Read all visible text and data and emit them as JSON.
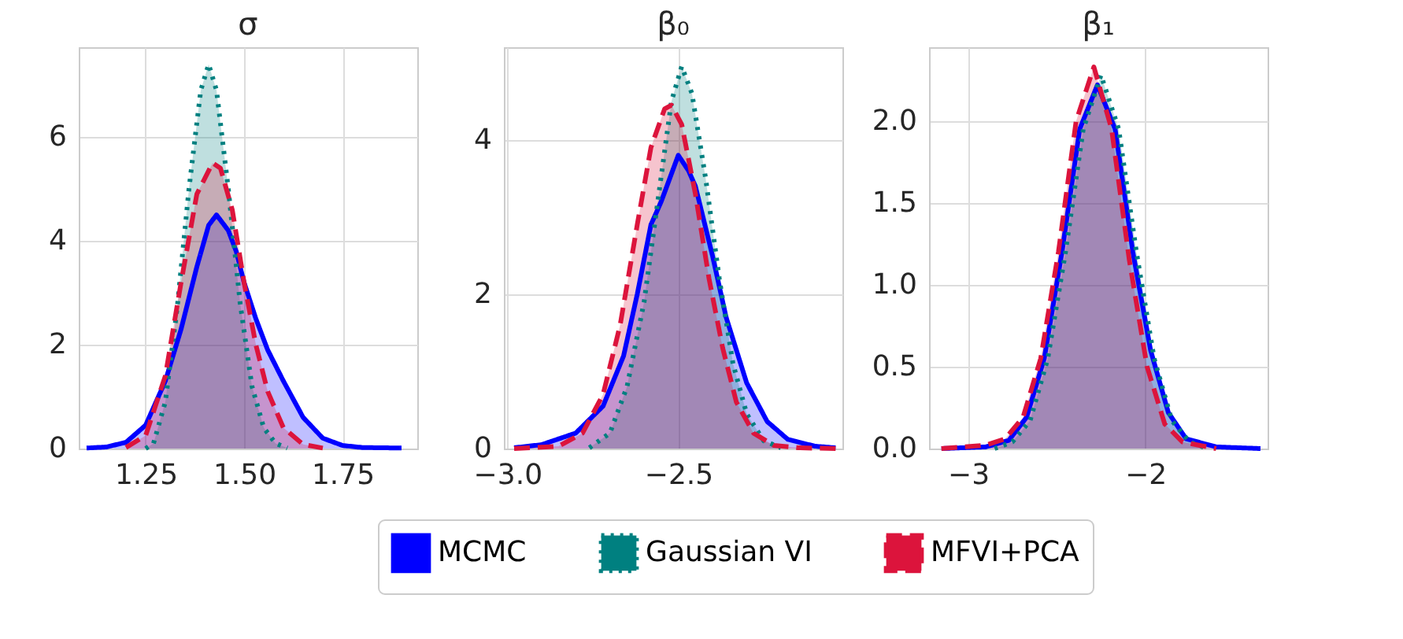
{
  "chart_data": [
    {
      "type": "area",
      "title": "σ",
      "xlim": [
        1.08,
        1.94
      ],
      "ylim": [
        0,
        7.73
      ],
      "xticks": [
        1.25,
        {
          "value": 1.5,
          "label": "1.50"
        },
        1.75
      ],
      "yticks": [
        0,
        2,
        4,
        6
      ],
      "grid": true,
      "legend": "bottom",
      "series": [
        {
          "name": "MCMC",
          "color": "#0000ff",
          "line_style": "solid",
          "x": [
            1.1,
            1.15,
            1.2,
            1.25,
            1.3,
            1.34,
            1.38,
            1.41,
            1.43,
            1.46,
            1.48,
            1.5,
            1.53,
            1.56,
            1.6,
            1.65,
            1.7,
            1.75,
            1.8,
            1.9
          ],
          "values": [
            0.01,
            0.03,
            0.12,
            0.45,
            1.3,
            2.3,
            3.5,
            4.3,
            4.5,
            4.2,
            3.8,
            3.2,
            2.5,
            1.9,
            1.3,
            0.6,
            0.2,
            0.06,
            0.02,
            0.01
          ]
        },
        {
          "name": "Gaussian VI",
          "color": "#008080",
          "line_style": "dotted",
          "x": [
            1.25,
            1.27,
            1.3,
            1.33,
            1.36,
            1.39,
            1.41,
            1.43,
            1.46,
            1.49,
            1.52,
            1.55,
            1.58,
            1.61
          ],
          "values": [
            0,
            0.1,
            0.9,
            2.7,
            5.0,
            6.9,
            7.4,
            6.9,
            5.0,
            2.8,
            1.2,
            0.4,
            0.1,
            0.01
          ]
        },
        {
          "name": "MFVI+PCA",
          "color": "#dc143c",
          "line_style": "dashed",
          "x": [
            1.2,
            1.25,
            1.3,
            1.34,
            1.38,
            1.42,
            1.44,
            1.47,
            1.5,
            1.53,
            1.56,
            1.6,
            1.65,
            1.7
          ],
          "values": [
            0.02,
            0.25,
            1.4,
            3.2,
            4.9,
            5.5,
            5.4,
            4.6,
            3.2,
            2.0,
            1.1,
            0.4,
            0.08,
            0.01
          ]
        }
      ]
    },
    {
      "type": "area",
      "title": "β₀",
      "xlim": [
        -3.01,
        -2.02
      ],
      "ylim": [
        0,
        5.2
      ],
      "xticks": [
        {
          "value": -3,
          "label": "−3.0"
        },
        {
          "value": -2.5,
          "label": "−2.5"
        }
      ],
      "yticks": [
        0,
        2,
        4
      ],
      "grid": true,
      "series": [
        {
          "color": "#0000ff",
          "line_style": "solid",
          "x": [
            -2.98,
            -2.9,
            -2.8,
            -2.72,
            -2.66,
            -2.62,
            -2.58,
            -2.55,
            -2.5,
            -2.47,
            -2.45,
            -2.4,
            -2.36,
            -2.3,
            -2.24,
            -2.18,
            -2.1,
            -2.04
          ],
          "values": [
            0.01,
            0.05,
            0.2,
            0.55,
            1.2,
            2.0,
            2.9,
            3.2,
            3.8,
            3.6,
            3.4,
            2.5,
            1.7,
            0.85,
            0.35,
            0.12,
            0.03,
            0.01
          ]
        },
        {
          "color": "#008080",
          "line_style": "dotted",
          "x": [
            -2.76,
            -2.7,
            -2.65,
            -2.6,
            -2.56,
            -2.52,
            -2.49,
            -2.46,
            -2.42,
            -2.38,
            -2.34,
            -2.3,
            -2.25,
            -2.2
          ],
          "values": [
            0.01,
            0.2,
            0.8,
            1.9,
            3.2,
            4.5,
            4.95,
            4.6,
            3.5,
            2.2,
            1.1,
            0.45,
            0.1,
            0.01
          ]
        },
        {
          "color": "#dc143c",
          "line_style": "dashed",
          "x": [
            -2.98,
            -2.85,
            -2.78,
            -2.72,
            -2.67,
            -2.62,
            -2.58,
            -2.54,
            -2.52,
            -2.49,
            -2.45,
            -2.41,
            -2.37,
            -2.33,
            -2.28,
            -2.22,
            -2.15,
            -2.04
          ],
          "values": [
            0,
            0.03,
            0.2,
            0.7,
            1.6,
            2.9,
            3.9,
            4.4,
            4.45,
            4.2,
            3.3,
            2.2,
            1.3,
            0.6,
            0.2,
            0.04,
            0.01,
            0
          ]
        }
      ]
    },
    {
      "type": "area",
      "title": "β₁",
      "xlim": [
        -3.22,
        -1.31
      ],
      "ylim": [
        0,
        2.45
      ],
      "xticks": [
        {
          "value": -3,
          "label": "−3"
        },
        {
          "value": -2,
          "label": "−2"
        }
      ],
      "yticks": [
        {
          "value": 0,
          "label": "0.0"
        },
        0.5,
        {
          "value": 1,
          "label": "1.0"
        },
        1.5,
        {
          "value": 2,
          "label": "2.0"
        }
      ],
      "grid": true,
      "series": [
        {
          "color": "#0000ff",
          "line_style": "solid",
          "x": [
            -3.15,
            -2.9,
            -2.77,
            -2.67,
            -2.57,
            -2.47,
            -2.37,
            -2.27,
            -2.17,
            -2.07,
            -1.97,
            -1.87,
            -1.77,
            -1.6,
            -1.35
          ],
          "values": [
            0,
            0.01,
            0.05,
            0.19,
            0.55,
            1.2,
            1.95,
            2.22,
            1.95,
            1.2,
            0.6,
            0.22,
            0.06,
            0.01,
            0
          ]
        },
        {
          "color": "#008080",
          "line_style": "dotted",
          "x": [
            -2.85,
            -2.75,
            -2.65,
            -2.55,
            -2.45,
            -2.35,
            -2.25,
            -2.15,
            -2.05,
            -1.95,
            -1.85,
            -1.75,
            -1.65
          ],
          "values": [
            0,
            0.04,
            0.17,
            0.55,
            1.2,
            1.95,
            2.28,
            1.95,
            1.2,
            0.55,
            0.17,
            0.04,
            0
          ]
        },
        {
          "color": "#dc143c",
          "line_style": "dashed",
          "x": [
            -3.15,
            -2.9,
            -2.79,
            -2.69,
            -2.59,
            -2.49,
            -2.39,
            -2.29,
            -2.19,
            -2.09,
            -1.99,
            -1.89,
            -1.79,
            -1.6
          ],
          "values": [
            0,
            0.02,
            0.06,
            0.19,
            0.55,
            1.2,
            2.0,
            2.33,
            1.95,
            1.15,
            0.5,
            0.15,
            0.04,
            0
          ]
        }
      ]
    }
  ]
}
